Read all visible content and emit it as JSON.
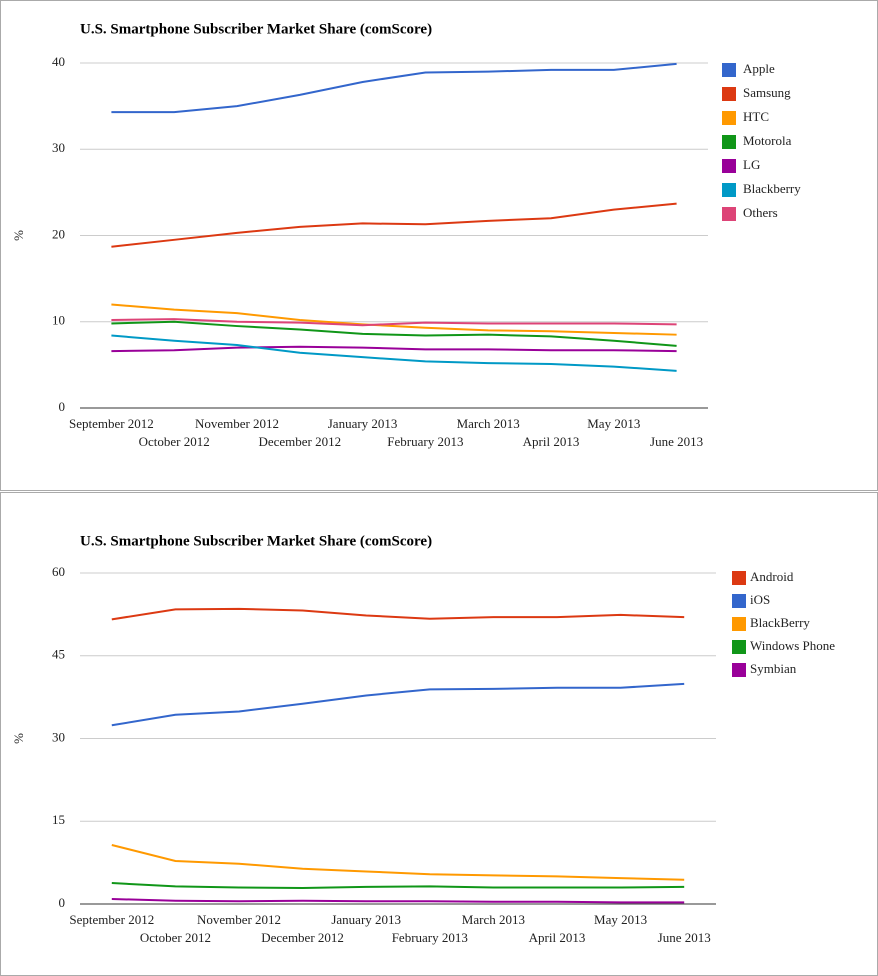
{
  "chart_data": [
    {
      "type": "line",
      "title": "U.S. Smartphone Subscriber Market Share (comScore)",
      "ylabel": "%",
      "categories": [
        "September 2012",
        "October 2012",
        "November 2012",
        "December 2012",
        "January 2013",
        "February 2013",
        "March 2013",
        "April 2013",
        "May 2013",
        "June 2013"
      ],
      "ylim": [
        0,
        40
      ],
      "yticks": [
        0,
        10,
        20,
        30,
        40
      ],
      "grid": true,
      "legend": "right",
      "series": [
        {
          "name": "Apple",
          "color": "#3366cc",
          "values": [
            34.3,
            34.3,
            35.0,
            36.3,
            37.8,
            38.9,
            39.0,
            39.2,
            39.2,
            39.9
          ]
        },
        {
          "name": "Samsung",
          "color": "#dc3912",
          "values": [
            18.7,
            19.5,
            20.3,
            21.0,
            21.4,
            21.3,
            21.7,
            22.0,
            23.0,
            23.7
          ]
        },
        {
          "name": "HTC",
          "color": "#ff9900",
          "values": [
            12.0,
            11.4,
            11.0,
            10.2,
            9.7,
            9.3,
            9.0,
            8.9,
            8.7,
            8.5
          ]
        },
        {
          "name": "Motorola",
          "color": "#109618",
          "values": [
            9.8,
            10.0,
            9.5,
            9.1,
            8.6,
            8.4,
            8.5,
            8.3,
            7.8,
            7.2
          ]
        },
        {
          "name": "LG",
          "color": "#990099",
          "values": [
            6.6,
            6.7,
            7.0,
            7.1,
            7.0,
            6.8,
            6.8,
            6.7,
            6.7,
            6.6
          ]
        },
        {
          "name": "Blackberry",
          "color": "#0099c6",
          "values": [
            8.4,
            7.8,
            7.3,
            6.4,
            5.9,
            5.4,
            5.2,
            5.1,
            4.8,
            4.3
          ]
        },
        {
          "name": "Others",
          "color": "#dd4477",
          "values": [
            10.2,
            10.3,
            10.0,
            9.9,
            9.6,
            9.9,
            9.8,
            9.8,
            9.8,
            9.7
          ]
        }
      ]
    },
    {
      "type": "line",
      "title": "U.S. Smartphone Subscriber Market Share (comScore)",
      "ylabel": "%",
      "categories": [
        "September 2012",
        "October 2012",
        "November 2012",
        "December 2012",
        "January 2013",
        "February 2013",
        "March 2013",
        "April 2013",
        "May 2013",
        "June 2013"
      ],
      "ylim": [
        0,
        60
      ],
      "yticks": [
        0,
        15,
        30,
        45,
        60
      ],
      "grid": true,
      "legend": "right",
      "series": [
        {
          "name": "Android",
          "color": "#dc3912",
          "values": [
            51.6,
            53.4,
            53.5,
            53.2,
            52.3,
            51.7,
            52.0,
            52.0,
            52.4,
            52.0
          ]
        },
        {
          "name": "iOS",
          "color": "#3366cc",
          "values": [
            32.4,
            34.3,
            34.9,
            36.3,
            37.8,
            38.9,
            39.0,
            39.2,
            39.2,
            39.9
          ]
        },
        {
          "name": "BlackBerry",
          "color": "#ff9900",
          "values": [
            10.7,
            7.8,
            7.3,
            6.4,
            5.9,
            5.4,
            5.2,
            5.0,
            4.7,
            4.4
          ]
        },
        {
          "name": "Windows Phone",
          "color": "#109618",
          "values": [
            3.8,
            3.2,
            3.0,
            2.9,
            3.1,
            3.2,
            3.0,
            3.0,
            3.0,
            3.1
          ]
        },
        {
          "name": "Symbian",
          "color": "#990099",
          "values": [
            0.9,
            0.6,
            0.5,
            0.6,
            0.5,
            0.5,
            0.4,
            0.4,
            0.3,
            0.3
          ]
        }
      ]
    }
  ]
}
